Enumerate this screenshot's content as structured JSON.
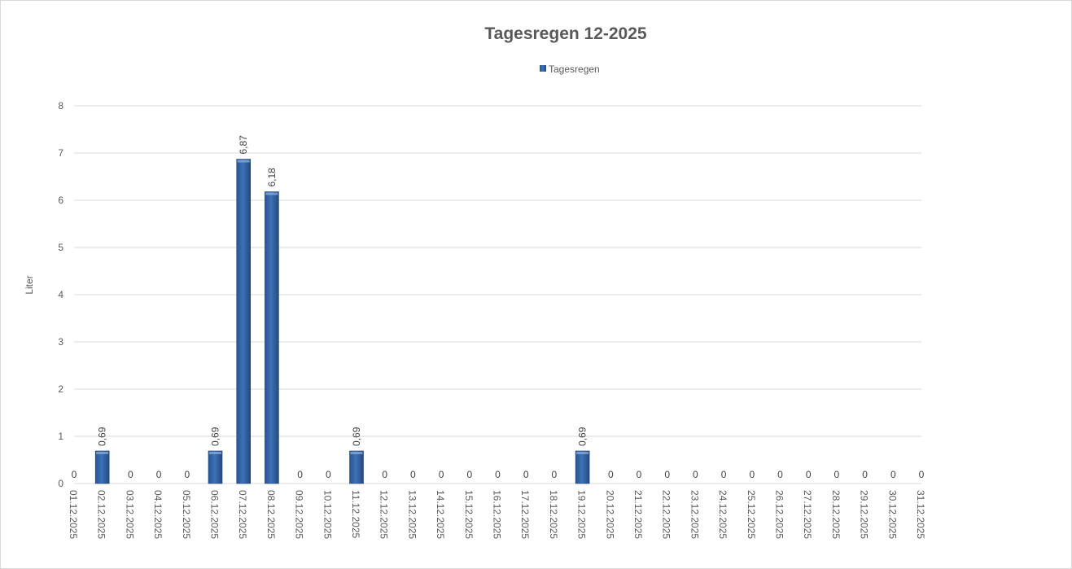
{
  "chart_data": {
    "type": "bar",
    "title": "Tagesregen 12-2025",
    "ylabel": "Liter",
    "xlabel": "",
    "ylim": [
      0,
      8
    ],
    "yticks": [
      0,
      1,
      2,
      3,
      4,
      5,
      6,
      7,
      8
    ],
    "grid": true,
    "legend_position": "top",
    "categories": [
      "01.12.2025",
      "02.12.2025",
      "03.12.2025",
      "04.12.2025",
      "05.12.2025",
      "06.12.2025",
      "07.12.2025",
      "08.12.2025",
      "09.12.2025",
      "10.12.2025",
      "11.12.2025",
      "12.12.2025",
      "13.12.2025",
      "14.12.2025",
      "15.12.2025",
      "16.12.2025",
      "17.12.2025",
      "18.12.2025",
      "19.12.2025",
      "20.12.2025",
      "21.12.2025",
      "22.12.2025",
      "23.12.2025",
      "24.12.2025",
      "25.12.2025",
      "26.12.2025",
      "27.12.2025",
      "28.12.2025",
      "29.12.2025",
      "30.12.2025",
      "31.12.2025"
    ],
    "series": [
      {
        "name": "Tagesregen",
        "color": "#2e5f9e",
        "values": [
          0,
          0.69,
          0,
          0,
          0,
          0.69,
          6.87,
          6.18,
          0,
          0,
          0.69,
          0,
          0,
          0,
          0,
          0,
          0,
          0,
          0.69,
          0,
          0,
          0,
          0,
          0,
          0,
          0,
          0,
          0,
          0,
          0,
          0
        ],
        "data_labels": [
          "0",
          "0,69",
          "0",
          "0",
          "0",
          "0,69",
          "6,87",
          "6,18",
          "0",
          "0",
          "0,69",
          "0",
          "0",
          "0",
          "0",
          "0",
          "0",
          "0",
          "0,69",
          "0",
          "0",
          "0",
          "0",
          "0",
          "0",
          "0",
          "0",
          "0",
          "0",
          "0",
          "0"
        ]
      }
    ]
  }
}
